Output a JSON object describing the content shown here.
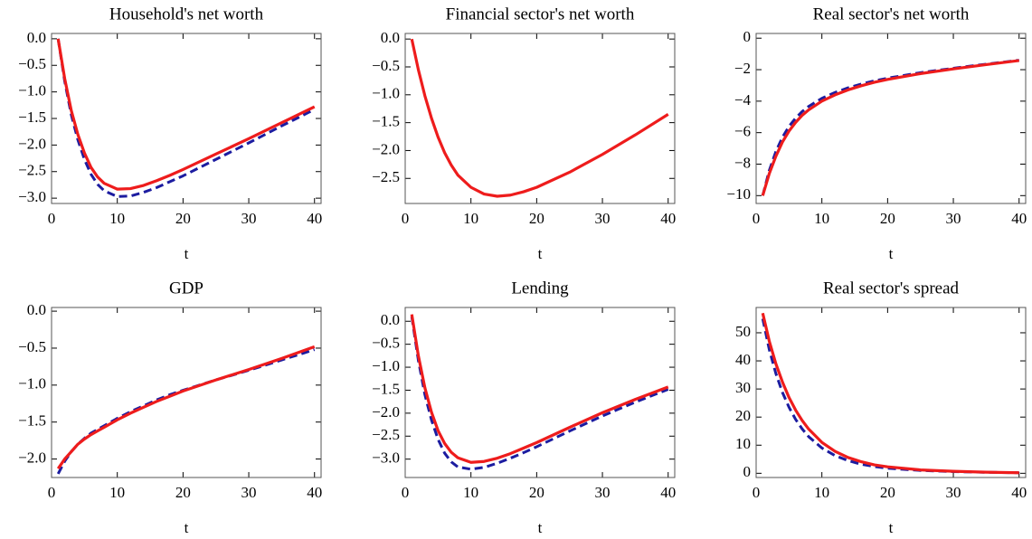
{
  "chart_data": [
    {
      "type": "line",
      "title": "Household's net worth",
      "xlabel": "t",
      "x": [
        1,
        2,
        3,
        4,
        5,
        6,
        7,
        8,
        10,
        12,
        14,
        16,
        18,
        20,
        25,
        30,
        35,
        40
      ],
      "xlim": [
        0,
        41
      ],
      "xticks": [
        0,
        10,
        20,
        30,
        40
      ],
      "ylim": [
        -3.1,
        0.1
      ],
      "yticks": [
        {
          "value": 0,
          "label": "0.0"
        },
        {
          "value": -0.5,
          "label": "−0.5"
        },
        {
          "value": -1,
          "label": "−1.0"
        },
        {
          "value": -1.5,
          "label": "−1.5"
        },
        {
          "value": -2,
          "label": "−2.0"
        },
        {
          "value": -2.5,
          "label": "−2.5"
        },
        {
          "value": -3,
          "label": "−3.0"
        }
      ],
      "series": [
        {
          "color": "#1c1ca0",
          "dash": true,
          "values": [
            0,
            -0.8,
            -1.43,
            -1.9,
            -2.27,
            -2.55,
            -2.74,
            -2.86,
            -2.97,
            -2.96,
            -2.89,
            -2.8,
            -2.69,
            -2.58,
            -2.27,
            -1.96,
            -1.64,
            -1.33
          ]
        },
        {
          "color": "#ee1c1c",
          "dash": false,
          "values": [
            0,
            -0.75,
            -1.35,
            -1.8,
            -2.15,
            -2.42,
            -2.6,
            -2.72,
            -2.83,
            -2.82,
            -2.76,
            -2.67,
            -2.57,
            -2.46,
            -2.17,
            -1.88,
            -1.58,
            -1.28
          ]
        }
      ]
    },
    {
      "type": "line",
      "title": "Financial sector's net worth",
      "xlabel": "t",
      "x": [
        1,
        2,
        3,
        4,
        5,
        6,
        7,
        8,
        10,
        12,
        14,
        16,
        18,
        20,
        25,
        30,
        35,
        40
      ],
      "xlim": [
        0,
        41
      ],
      "xticks": [
        0,
        10,
        20,
        30,
        40
      ],
      "ylim": [
        -2.95,
        0.1
      ],
      "yticks": [
        {
          "value": 0,
          "label": "0.0"
        },
        {
          "value": -0.5,
          "label": "−0.5"
        },
        {
          "value": -1,
          "label": "−1.0"
        },
        {
          "value": -1.5,
          "label": "−1.5"
        },
        {
          "value": -2,
          "label": "−2.0"
        },
        {
          "value": -2.5,
          "label": "−2.5"
        }
      ],
      "series": [
        {
          "color": "#ee1c1c",
          "dash": false,
          "values": [
            0,
            -0.55,
            -1.02,
            -1.42,
            -1.76,
            -2.04,
            -2.26,
            -2.44,
            -2.66,
            -2.78,
            -2.82,
            -2.8,
            -2.74,
            -2.66,
            -2.39,
            -2.07,
            -1.72,
            -1.35
          ]
        }
      ]
    },
    {
      "type": "line",
      "title": "Real sector's net worth",
      "xlabel": "t",
      "x": [
        1,
        2,
        3,
        4,
        5,
        6,
        7,
        8,
        10,
        12,
        14,
        16,
        18,
        20,
        25,
        30,
        35,
        40
      ],
      "xlim": [
        0,
        41
      ],
      "xticks": [
        0,
        10,
        20,
        30,
        40
      ],
      "ylim": [
        -10.5,
        0.3
      ],
      "yticks": [
        0,
        {
          "value": -2,
          "label": "−2"
        },
        {
          "value": -4,
          "label": "−4"
        },
        {
          "value": -6,
          "label": "−6"
        },
        {
          "value": -8,
          "label": "−8"
        },
        {
          "value": -10,
          "label": "−10"
        }
      ],
      "series": [
        {
          "color": "#1c1ca0",
          "dash": true,
          "values": [
            -10,
            -8.4,
            -7.2,
            -6.3,
            -5.6,
            -5.08,
            -4.66,
            -4.33,
            -3.82,
            -3.45,
            -3.15,
            -2.91,
            -2.71,
            -2.54,
            -2.19,
            -1.91,
            -1.65,
            -1.4
          ]
        },
        {
          "color": "#ee1c1c",
          "dash": false,
          "values": [
            -10,
            -8.6,
            -7.5,
            -6.6,
            -5.9,
            -5.35,
            -4.9,
            -4.55,
            -4.0,
            -3.6,
            -3.28,
            -3.02,
            -2.8,
            -2.62,
            -2.25,
            -1.95,
            -1.68,
            -1.42
          ]
        }
      ]
    },
    {
      "type": "line",
      "title": "GDP",
      "xlabel": "t",
      "x": [
        1,
        2,
        3,
        4,
        5,
        6,
        7,
        8,
        10,
        12,
        14,
        16,
        18,
        20,
        25,
        30,
        35,
        40
      ],
      "xlim": [
        0,
        41
      ],
      "xticks": [
        0,
        10,
        20,
        30,
        40
      ],
      "ylim": [
        -2.25,
        0.05
      ],
      "yticks": [
        {
          "value": 0,
          "label": "0.0"
        },
        {
          "value": -0.5,
          "label": "−0.5"
        },
        {
          "value": -1,
          "label": "−1.0"
        },
        {
          "value": -1.5,
          "label": "−1.5"
        },
        {
          "value": -2,
          "label": "−2.0"
        }
      ],
      "series": [
        {
          "color": "#1c1ca0",
          "dash": true,
          "values": [
            -2.2,
            -2.03,
            -1.9,
            -1.8,
            -1.72,
            -1.65,
            -1.6,
            -1.55,
            -1.45,
            -1.36,
            -1.28,
            -1.2,
            -1.13,
            -1.07,
            -0.93,
            -0.8,
            -0.66,
            -0.52
          ]
        },
        {
          "color": "#ee1c1c",
          "dash": false,
          "values": [
            -2.13,
            -2.0,
            -1.9,
            -1.8,
            -1.73,
            -1.67,
            -1.62,
            -1.57,
            -1.47,
            -1.38,
            -1.3,
            -1.22,
            -1.15,
            -1.08,
            -0.93,
            -0.79,
            -0.64,
            -0.48
          ]
        }
      ]
    },
    {
      "type": "line",
      "title": "Lending",
      "xlabel": "t",
      "x": [
        1,
        2,
        3,
        4,
        5,
        6,
        7,
        8,
        10,
        12,
        14,
        16,
        18,
        20,
        25,
        30,
        35,
        40
      ],
      "xlim": [
        0,
        41
      ],
      "xticks": [
        0,
        10,
        20,
        30,
        40
      ],
      "ylim": [
        -3.4,
        0.3
      ],
      "yticks": [
        {
          "value": 0,
          "label": "0.0"
        },
        {
          "value": -0.5,
          "label": "−0.5"
        },
        {
          "value": -1,
          "label": "−1.0"
        },
        {
          "value": -1.5,
          "label": "−1.5"
        },
        {
          "value": -2,
          "label": "−2.0"
        },
        {
          "value": -2.5,
          "label": "−2.5"
        },
        {
          "value": -3,
          "label": "−3.0"
        }
      ],
      "series": [
        {
          "color": "#1c1ca0",
          "dash": true,
          "values": [
            0.1,
            -0.85,
            -1.6,
            -2.15,
            -2.57,
            -2.87,
            -3.06,
            -3.17,
            -3.22,
            -3.18,
            -3.09,
            -2.98,
            -2.86,
            -2.73,
            -2.39,
            -2.06,
            -1.76,
            -1.48
          ]
        },
        {
          "color": "#ee1c1c",
          "dash": false,
          "values": [
            0.15,
            -0.75,
            -1.45,
            -1.98,
            -2.38,
            -2.66,
            -2.85,
            -2.97,
            -3.07,
            -3.05,
            -2.98,
            -2.88,
            -2.76,
            -2.64,
            -2.31,
            -1.99,
            -1.7,
            -1.43
          ]
        }
      ]
    },
    {
      "type": "line",
      "title": "Real sector's spread",
      "xlabel": "t",
      "x": [
        1,
        2,
        3,
        4,
        5,
        6,
        7,
        8,
        10,
        12,
        14,
        16,
        18,
        20,
        25,
        30,
        35,
        40
      ],
      "xlim": [
        0,
        41
      ],
      "xticks": [
        0,
        10,
        20,
        30,
        40
      ],
      "ylim": [
        -1.5,
        59
      ],
      "yticks": [
        0,
        10,
        20,
        30,
        40,
        50
      ],
      "series": [
        {
          "color": "#1c1ca0",
          "dash": true,
          "values": [
            55,
            44,
            35.5,
            28.8,
            23.5,
            19.2,
            15.8,
            13,
            9,
            6.3,
            4.5,
            3.2,
            2.4,
            1.8,
            1.0,
            0.6,
            0.35,
            0.2
          ]
        },
        {
          "color": "#ee1c1c",
          "dash": false,
          "values": [
            57,
            47,
            39,
            32.5,
            27,
            22.5,
            18.8,
            15.7,
            11,
            7.8,
            5.6,
            4.1,
            3.0,
            2.3,
            1.2,
            0.7,
            0.4,
            0.2
          ]
        }
      ]
    }
  ]
}
